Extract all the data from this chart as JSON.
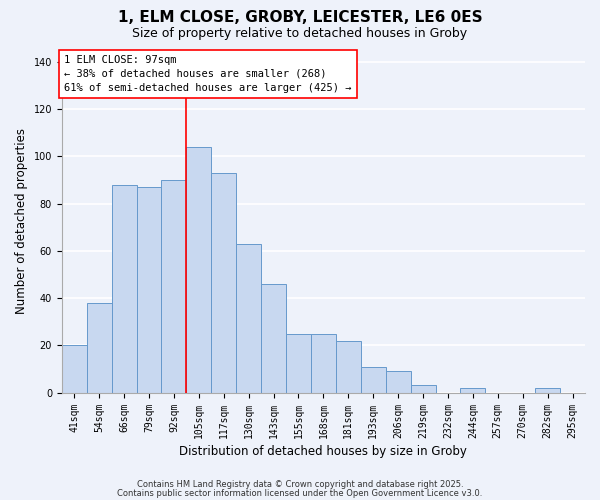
{
  "title": "1, ELM CLOSE, GROBY, LEICESTER, LE6 0ES",
  "subtitle": "Size of property relative to detached houses in Groby",
  "xlabel": "Distribution of detached houses by size in Groby",
  "ylabel": "Number of detached properties",
  "bar_color": "#c8d8f0",
  "bar_edge_color": "#6699cc",
  "categories": [
    "41sqm",
    "54sqm",
    "66sqm",
    "79sqm",
    "92sqm",
    "105sqm",
    "117sqm",
    "130sqm",
    "143sqm",
    "155sqm",
    "168sqm",
    "181sqm",
    "193sqm",
    "206sqm",
    "219sqm",
    "232sqm",
    "244sqm",
    "257sqm",
    "270sqm",
    "282sqm",
    "295sqm"
  ],
  "values": [
    20,
    38,
    88,
    87,
    90,
    104,
    93,
    63,
    46,
    25,
    25,
    22,
    11,
    9,
    3,
    0,
    2,
    0,
    0,
    2,
    0
  ],
  "vline_x_index": 4.5,
  "annotation_box_text": "1 ELM CLOSE: 97sqm\n← 38% of detached houses are smaller (268)\n61% of semi-detached houses are larger (425) →",
  "footer1": "Contains HM Land Registry data © Crown copyright and database right 2025.",
  "footer2": "Contains public sector information licensed under the Open Government Licence v3.0.",
  "ylim": [
    0,
    145
  ],
  "yticks": [
    0,
    20,
    40,
    60,
    80,
    100,
    120,
    140
  ],
  "background_color": "#eef2fa",
  "grid_color": "#ffffff",
  "title_fontsize": 11,
  "subtitle_fontsize": 9,
  "axis_label_fontsize": 8.5,
  "tick_fontsize": 7,
  "annotation_fontsize": 7.5,
  "footer_fontsize": 6
}
